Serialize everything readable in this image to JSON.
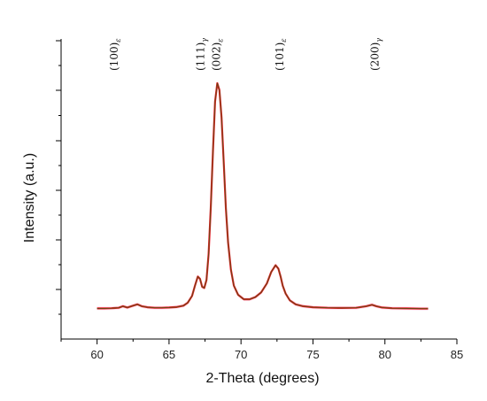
{
  "chart_data": {
    "type": "line",
    "title": "",
    "xlabel": "2-Theta (degrees)",
    "ylabel": "Intensity (a.u.)",
    "xlim": [
      57.5,
      85
    ],
    "ylim": [
      0,
      1.1
    ],
    "x_ticks": [
      60,
      65,
      70,
      75,
      80,
      85
    ],
    "grid": false,
    "legend": "none",
    "line_colors": [
      "#e8202a",
      "#5a4a10"
    ],
    "band_color": "#fce4f0",
    "series": [
      {
        "x": [
          60.0,
          60.5,
          61.0,
          61.5,
          61.8,
          62.1,
          62.5,
          62.8,
          63.1,
          63.5,
          64.0,
          64.5,
          65.0,
          65.5,
          66.0,
          66.3,
          66.6,
          66.8,
          67.0,
          67.15,
          67.3,
          67.45,
          67.6,
          67.75,
          67.9,
          68.05,
          68.2,
          68.35,
          68.5,
          68.65,
          68.8,
          68.95,
          69.1,
          69.3,
          69.5,
          69.8,
          70.2,
          70.6,
          71.0,
          71.4,
          71.8,
          72.1,
          72.4,
          72.6,
          72.75,
          72.9,
          73.1,
          73.4,
          73.8,
          74.3,
          75.0,
          76.0,
          77.0,
          78.0,
          78.7,
          79.1,
          79.4,
          79.8,
          80.5,
          81.5,
          82.5,
          83.0
        ],
        "y": [
          0.01,
          0.01,
          0.011,
          0.013,
          0.02,
          0.014,
          0.022,
          0.028,
          0.02,
          0.015,
          0.013,
          0.013,
          0.014,
          0.016,
          0.022,
          0.035,
          0.065,
          0.11,
          0.15,
          0.14,
          0.105,
          0.1,
          0.135,
          0.25,
          0.45,
          0.7,
          0.92,
          1.0,
          0.97,
          0.85,
          0.65,
          0.45,
          0.3,
          0.18,
          0.11,
          0.07,
          0.05,
          0.05,
          0.06,
          0.08,
          0.12,
          0.17,
          0.2,
          0.185,
          0.15,
          0.11,
          0.075,
          0.045,
          0.028,
          0.02,
          0.015,
          0.013,
          0.012,
          0.013,
          0.02,
          0.026,
          0.02,
          0.014,
          0.011,
          0.01,
          0.009,
          0.009
        ]
      }
    ],
    "annotations": [
      {
        "x": 61.2,
        "base": "(100)",
        "phase": "ε"
      },
      {
        "x": 67.2,
        "base": "(111)",
        "phase": "γ"
      },
      {
        "x": 68.3,
        "base": "(002)",
        "phase": "ε"
      },
      {
        "x": 72.7,
        "base": "(101)",
        "phase": "ε"
      },
      {
        "x": 79.3,
        "base": "(200)",
        "phase": "γ"
      }
    ]
  }
}
